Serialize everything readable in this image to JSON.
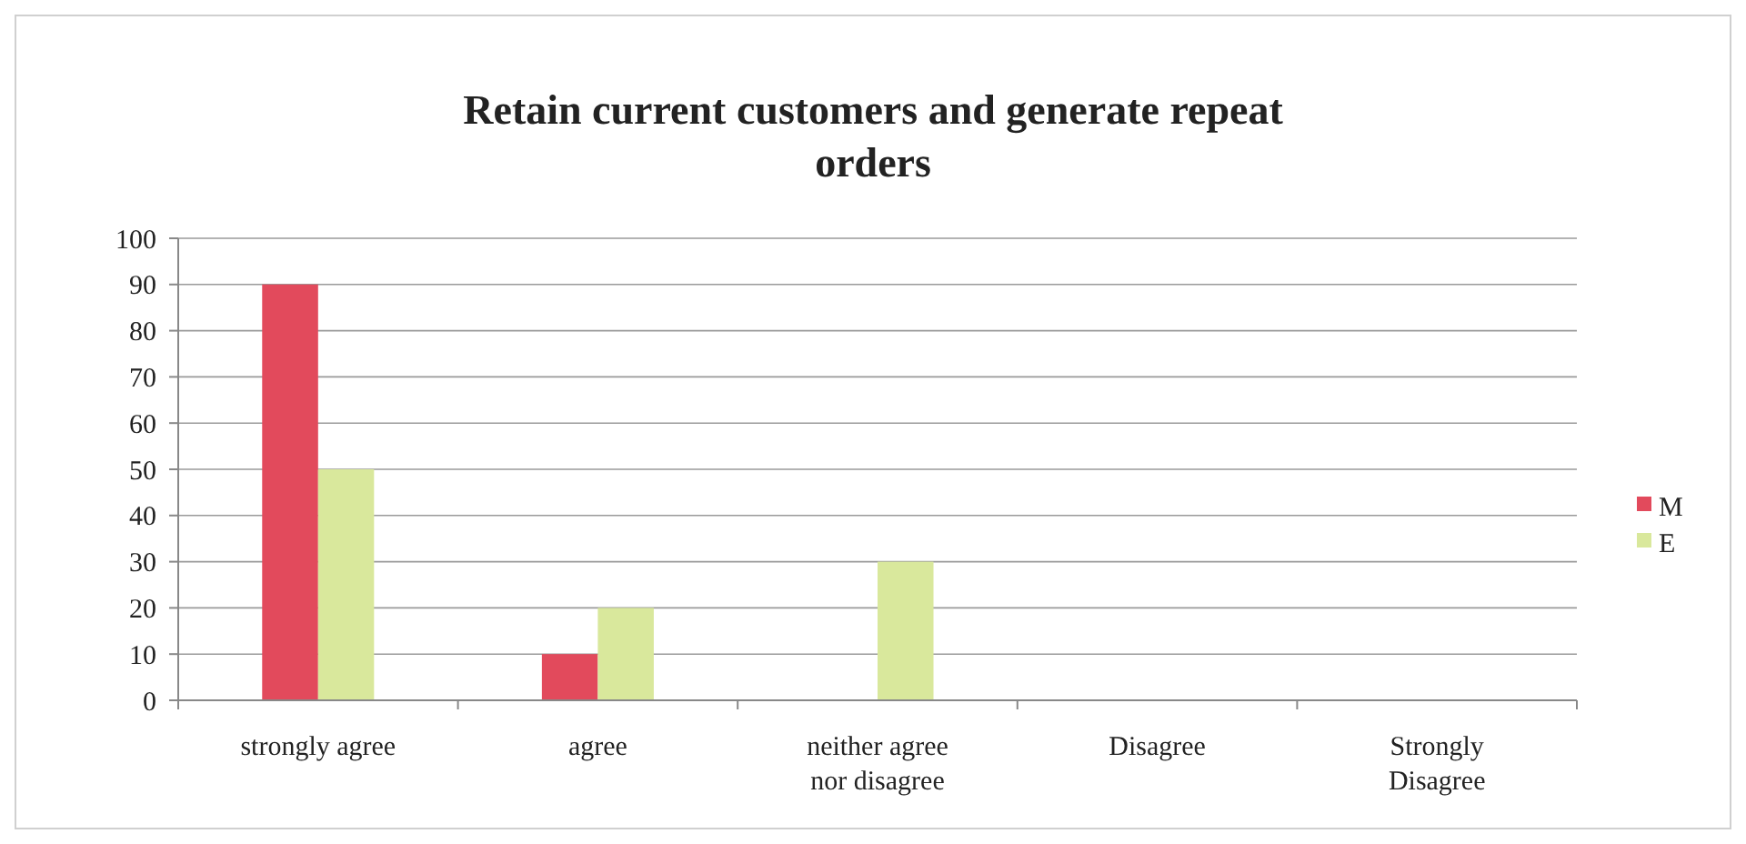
{
  "chart_data": {
    "type": "bar",
    "title": "Retain current customers and generate repeat orders",
    "categories": [
      "strongly agree",
      "agree",
      "neither agree nor disagree",
      "Disagree",
      "Strongly Disagree"
    ],
    "series": [
      {
        "name": "M",
        "color": "#e24a5c",
        "values": [
          90,
          10,
          0,
          0,
          0
        ]
      },
      {
        "name": "E",
        "color": "#d9e89c",
        "values": [
          50,
          20,
          30,
          0,
          0
        ]
      }
    ],
    "ylim": [
      0,
      100
    ],
    "yticks": [
      0,
      10,
      20,
      30,
      40,
      50,
      60,
      70,
      80,
      90,
      100
    ],
    "grid": "y",
    "legend": "right"
  }
}
